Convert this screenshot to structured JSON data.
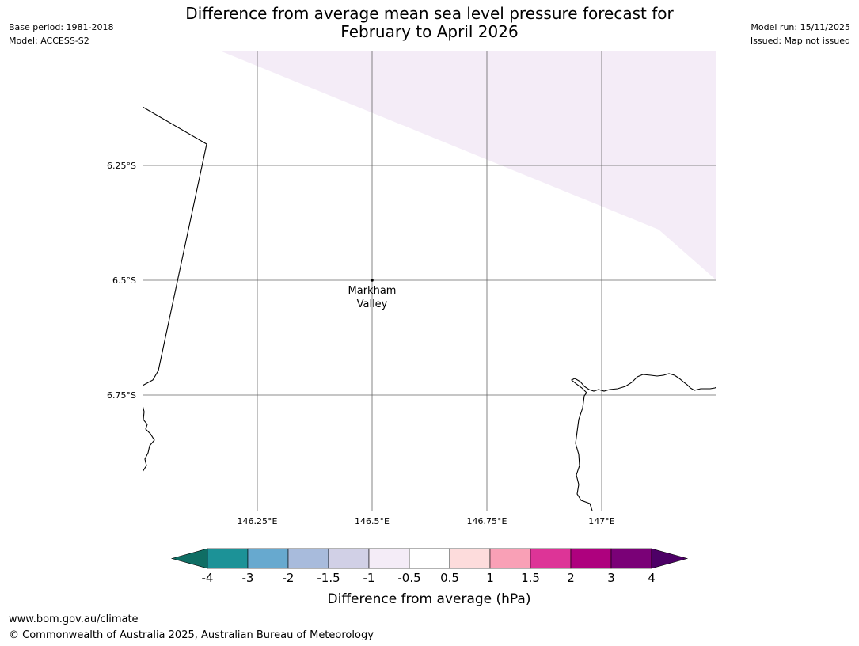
{
  "title": {
    "line1": "Difference from average mean sea level pressure forecast for",
    "line2": "February to April 2026"
  },
  "meta_left": {
    "base_period": "Base period: 1981-2018",
    "model": "Model: ACCESS-S2"
  },
  "meta_right": {
    "model_run": "Model run: 15/11/2025",
    "issued": "Issued: Map not issued"
  },
  "map": {
    "latitude_labels": [
      "6.25°S",
      "6.5°S",
      "6.75°S"
    ],
    "longitude_labels": [
      "146.25°E",
      "146.5°E",
      "146.75°E",
      "147°E"
    ],
    "location": {
      "name_line1": "Markham",
      "name_line2": "Valley"
    }
  },
  "colorbar": {
    "label": "Difference from average (hPa)",
    "ticks": [
      "-4",
      "-3",
      "-2",
      "-1.5",
      "-1",
      "-0.5",
      "0.5",
      "1",
      "1.5",
      "2",
      "3",
      "4"
    ],
    "colors": [
      "#0f6e64",
      "#1c9297",
      "#67a9cf",
      "#a8bbdc",
      "#d1d0e6",
      "#f4ecf7",
      "#ffffff",
      "#fddcdc",
      "#f9a0b6",
      "#dd3497",
      "#ae017e",
      "#7a0177",
      "#4d0066"
    ]
  },
  "shading": {
    "color": "#f4ecf7",
    "category": "-1 to -0.5 hPa"
  },
  "footer": {
    "website": "www.bom.gov.au/climate",
    "copyright": "© Commonwealth of Australia 2025, Australian Bureau of Meteorology"
  }
}
